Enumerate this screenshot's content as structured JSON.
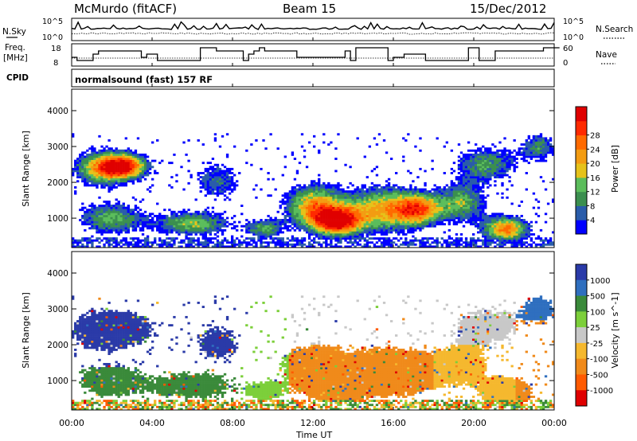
{
  "header": {
    "station": "McMurdo (fitACF)",
    "beam": "Beam 15",
    "date": "15/Dec/2012"
  },
  "status_panels": {
    "nsky_label": "N.Sky",
    "nsearch_label": "N.Search",
    "freq_label_1": "Freq.",
    "freq_label_2": "[MHz]",
    "nave_label": "Nave",
    "cpid_label": "CPID",
    "cpid_text": "normalsound (fast) 157 RF",
    "noise_ticks_left": [
      "10^5",
      "10^0"
    ],
    "noise_ticks_right": [
      "10^5",
      "10^0"
    ],
    "freq_ticks": [
      "18",
      "8"
    ],
    "nave_ticks": [
      "60",
      "0"
    ]
  },
  "colors": {
    "power_scale": [
      "#0000ff",
      "#2a5caa",
      "#3b8f4f",
      "#5bbd5b",
      "#e6c21a",
      "#f39c12",
      "#ff6a00",
      "#ff2a00",
      "#e00000"
    ],
    "velocity_scale": [
      "#2a3aa8",
      "#2f6fbf",
      "#3a8a3a",
      "#7ccf3a",
      "#c8c8c8",
      "#f5b82e",
      "#f08a1a",
      "#ff5a00",
      "#e00000"
    ]
  },
  "chart_data": [
    {
      "type": "heatmap",
      "name": "power",
      "ylabel": "Slant Range [km]",
      "y_ticks": [
        "1000",
        "2000",
        "3000",
        "4000"
      ],
      "ylim": [
        180,
        4600
      ],
      "colorbar_label": "Power [dB]",
      "colorbar_ticks": [
        "4",
        "8",
        "12",
        "16",
        "20",
        "24",
        "28"
      ],
      "color_range": [
        0,
        32
      ]
    },
    {
      "type": "heatmap",
      "name": "velocity",
      "ylabel": "Slant Range [km]",
      "y_ticks": [
        "1000",
        "2000",
        "3000",
        "4000"
      ],
      "ylim": [
        180,
        4600
      ],
      "colorbar_label": "Velocity [m s^-1]",
      "colorbar_ticks": [
        "1000",
        "500",
        "100",
        "25",
        "-25",
        "-100",
        "-500",
        "-1000"
      ]
    }
  ],
  "x_axis": {
    "label": "Time UT",
    "ticks": [
      "00:00",
      "04:00",
      "08:00",
      "12:00",
      "16:00",
      "20:00",
      "00:00"
    ]
  }
}
